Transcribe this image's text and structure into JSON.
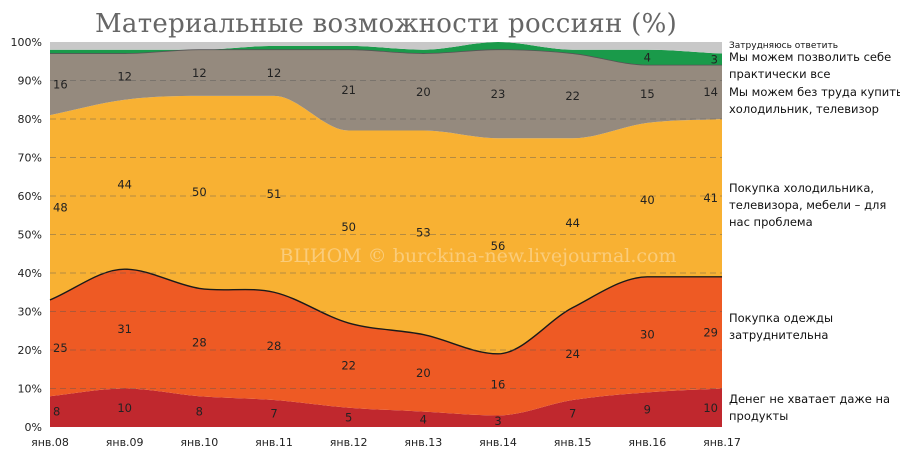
{
  "chart_data": {
    "type": "area",
    "title": "Материальные возможности россиян (%)",
    "categories": [
      "янв.08",
      "янв.09",
      "янв.10",
      "янв.11",
      "янв.12",
      "янв.13",
      "янв.14",
      "янв.15",
      "янв.16",
      "янв.17"
    ],
    "ylim": [
      0,
      100
    ],
    "y_ticks": [
      "0%",
      "10%",
      "20%",
      "30%",
      "40%",
      "50%",
      "60%",
      "70%",
      "80%",
      "90%",
      "100%"
    ],
    "stacked": true,
    "grid": true,
    "legend_position": "right",
    "watermark": "ВЦИОМ © burckina-new.livejournal.com",
    "series": [
      {
        "name": "Денег не хватает даже на продукты",
        "values": [
          8,
          10,
          8,
          7,
          5,
          4,
          3,
          7,
          9,
          10
        ],
        "color": "#c0282e"
      },
      {
        "name": "Покупка одежды затруднительна",
        "values": [
          25,
          31,
          28,
          28,
          22,
          20,
          16,
          24,
          30,
          29
        ],
        "color": "#ee5a24"
      },
      {
        "name": "Покупка холодильника, телевизора, мебели – для нас проблема",
        "values": [
          48,
          44,
          50,
          51,
          50,
          53,
          56,
          44,
          40,
          41
        ],
        "color": "#f8b133"
      },
      {
        "name": "Мы можем без труда купить холодильник, телевизор",
        "values": [
          16,
          12,
          12,
          12,
          21,
          20,
          23,
          22,
          15,
          14
        ],
        "color": "#958a7e"
      },
      {
        "name": "Мы можем позволить себе практически все",
        "values": [
          1,
          1,
          0,
          1,
          1,
          1,
          2,
          1,
          4,
          3
        ],
        "color": "#1a9a4a"
      },
      {
        "name": "Затрудняюсь ответить",
        "values": [
          2,
          2,
          2,
          1,
          1,
          2,
          0,
          2,
          2,
          3
        ],
        "color": "#c8c8c8"
      }
    ],
    "labels": {
      "0": [
        "8",
        "10",
        "8",
        "7",
        "5",
        "4",
        "3",
        "7",
        "9",
        "10"
      ],
      "1": [
        "25",
        "31",
        "28",
        "28",
        "22",
        "20",
        "16",
        "24",
        "30",
        "29"
      ],
      "2": [
        "48",
        "44",
        "50",
        "51",
        "50",
        "53",
        "56",
        "44",
        "40",
        "41"
      ],
      "3": [
        "16",
        "12",
        "12",
        "12",
        "21",
        "20",
        "23",
        "22",
        "15",
        "14"
      ],
      "4": [
        "",
        "",
        "",
        "",
        "",
        "",
        "",
        "",
        "4",
        "3"
      ]
    },
    "legend": [
      {
        "text": [
          "Затрудняюсь ответить"
        ],
        "small": true
      },
      {
        "text": [
          "Мы можем позволить себе",
          "практически все"
        ]
      },
      {
        "text": [
          "Мы можем без труда купить",
          "холодильник, телевизор"
        ]
      },
      {
        "text": [
          "Покупка холодильника,",
          "телевизора, мебели  – для",
          "нас проблема"
        ]
      },
      {
        "text": [
          "Покупка одежды",
          "затруднительна"
        ]
      },
      {
        "text": [
          "Денег не хватает даже на",
          "продукты"
        ]
      }
    ]
  }
}
